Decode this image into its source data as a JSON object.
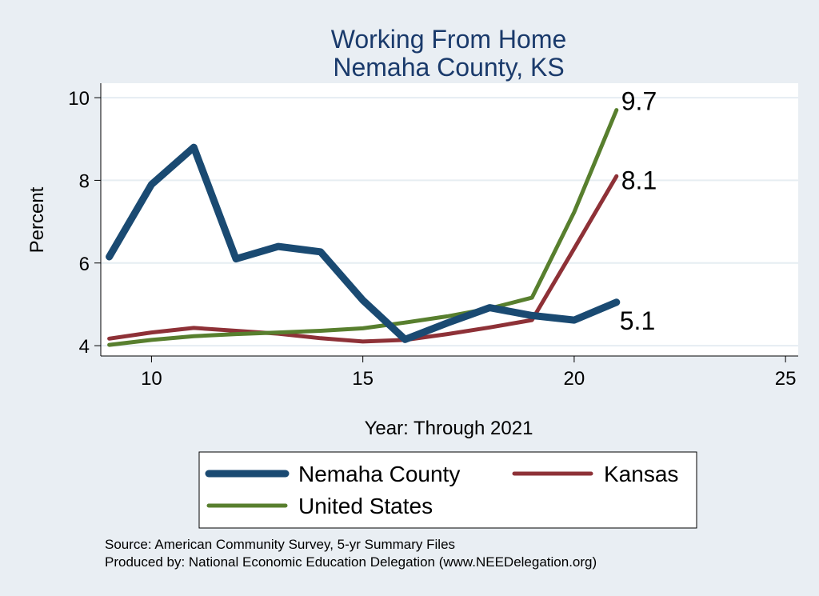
{
  "chart_data": {
    "type": "line",
    "title": [
      "Working From Home",
      "Nemaha County, KS"
    ],
    "xlabel": "Year: Through 2021",
    "ylabel": "Percent",
    "xlim": [
      8.8,
      25.3
    ],
    "ylim": [
      3.75,
      10.35
    ],
    "xticks": [
      10,
      15,
      20,
      25
    ],
    "yticks": [
      4,
      6,
      8,
      10
    ],
    "grid": true,
    "legend_position": "bottom",
    "series": [
      {
        "name": "Nemaha County",
        "color": "#1a4a72",
        "width": 9,
        "x": [
          9,
          10,
          11,
          12,
          13,
          14,
          15,
          16,
          17,
          18,
          19,
          20,
          21
        ],
        "y": [
          6.15,
          7.9,
          8.8,
          6.1,
          6.4,
          6.27,
          5.1,
          4.15,
          4.55,
          4.92,
          4.73,
          4.62,
          5.05
        ],
        "end_label": "5.1"
      },
      {
        "name": "Kansas",
        "color": "#8e3137",
        "width": 5,
        "x": [
          9,
          10,
          11,
          12,
          13,
          14,
          15,
          16,
          17,
          18,
          19,
          20,
          21
        ],
        "y": [
          4.17,
          4.32,
          4.43,
          4.36,
          4.29,
          4.18,
          4.1,
          4.14,
          4.28,
          4.44,
          4.62,
          6.35,
          8.1
        ],
        "end_label": "8.1"
      },
      {
        "name": "United States",
        "color": "#587f2e",
        "width": 5,
        "x": [
          9,
          10,
          11,
          12,
          13,
          14,
          15,
          16,
          17,
          18,
          19,
          20,
          21
        ],
        "y": [
          4.02,
          4.14,
          4.23,
          4.28,
          4.32,
          4.36,
          4.42,
          4.56,
          4.71,
          4.9,
          5.16,
          7.23,
          9.7
        ],
        "end_label": "9.7"
      }
    ]
  },
  "source": {
    "line1": "Source: American Community Survey, 5-yr Summary Files",
    "line2": "Produced by: National Economic Education Delegation (www.NEEDelegation.org)"
  }
}
